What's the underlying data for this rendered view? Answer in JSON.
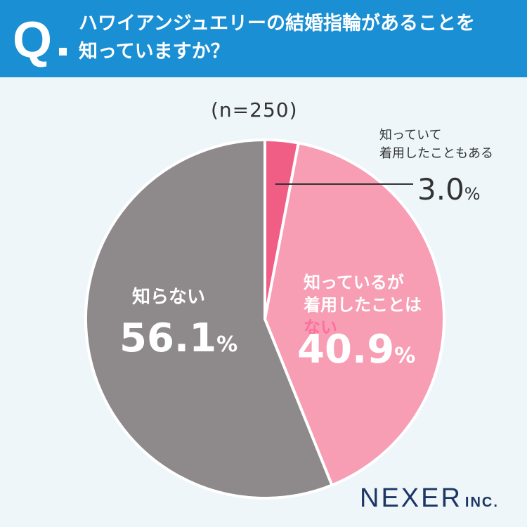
{
  "header": {
    "q_mark": "Q",
    "question_line1": "ハワイアンジュエリーの結婚指輪があることを",
    "question_line2": "知っていますか？"
  },
  "colors": {
    "header_bg": "#1a8fd3",
    "worn": "#f05e86",
    "not_worn": "#f79db4",
    "unknown": "#8e8a8b",
    "background": "#eef6fa"
  },
  "chart_data": {
    "type": "pie",
    "sample_size": "(n=250)",
    "unit": "%",
    "slices": [
      {
        "label_line1": "知っていて",
        "label_line2": "着用したこともある",
        "value": 3.0,
        "value_text": "3.0",
        "color": "#f05e86"
      },
      {
        "label_line1": "知っているが",
        "label_line2_main": "着用したことは",
        "label_line2_emph": "ない",
        "value": 40.9,
        "value_text": "40.9",
        "color": "#f79db4"
      },
      {
        "label_line1": "知らない",
        "value": 56.1,
        "value_text": "56.1",
        "color": "#8e8a8b"
      }
    ]
  },
  "brand": {
    "name": "NEXER",
    "suffix": "INC."
  }
}
